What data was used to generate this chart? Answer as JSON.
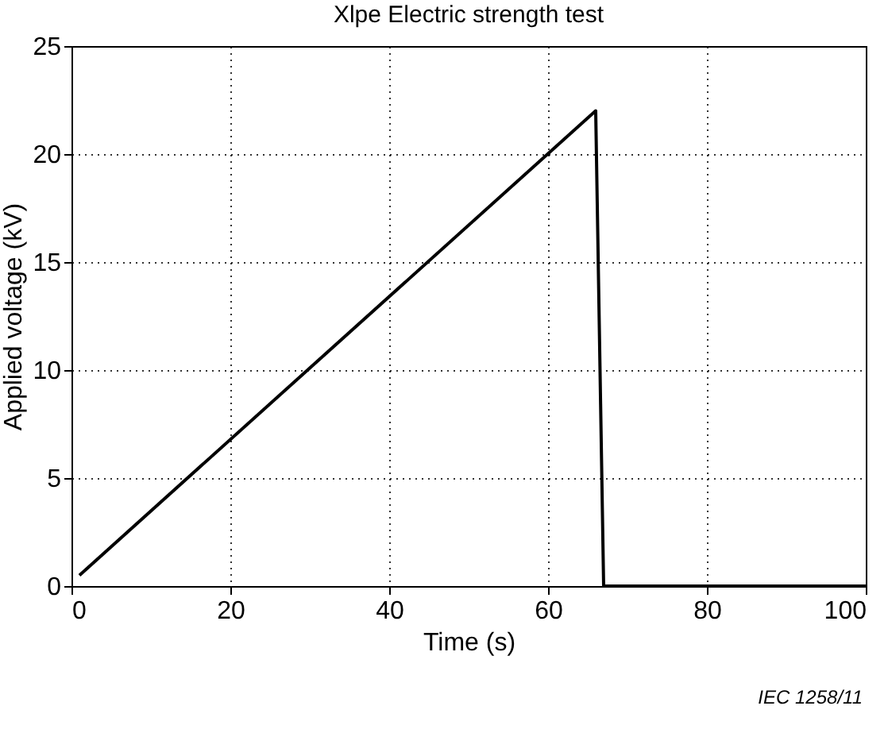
{
  "chart_data": {
    "type": "line",
    "title": "Xlpe Electric strength test",
    "xlabel": "Time (s)",
    "ylabel": "Applied voltage (kV)",
    "x": [
      1,
      66,
      67,
      100
    ],
    "series": [
      {
        "color": "#000000",
        "values": [
          0.5,
          22,
          0,
          0
        ]
      }
    ],
    "xlim": [
      0,
      100
    ],
    "xticks": [
      0,
      20,
      40,
      60,
      80,
      100
    ],
    "ylim": [
      0,
      25
    ],
    "yticks": [
      0,
      5,
      10,
      15,
      20,
      25
    ],
    "grid": true,
    "line_style": "solid",
    "marker": "none",
    "annotations": [
      "IEC 1258/11"
    ]
  }
}
